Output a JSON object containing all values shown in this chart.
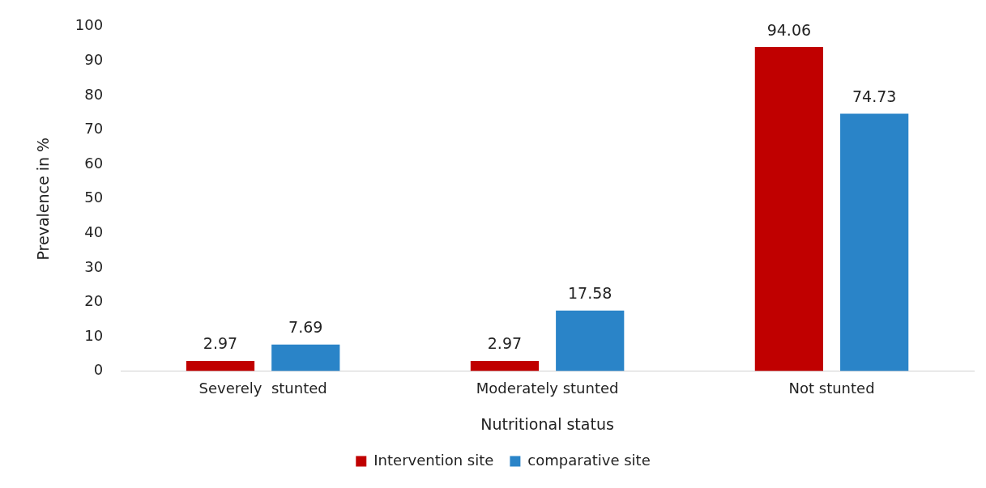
{
  "chart_data": {
    "type": "bar",
    "xlabel": "Nutritional status",
    "ylabel": "Prevalence in %",
    "categories": [
      "Severely  stunted",
      "Moderately stunted",
      "Not stunted"
    ],
    "series": [
      {
        "name": "Intervention site",
        "color": "#c00000",
        "values": [
          2.97,
          2.97,
          94.06
        ]
      },
      {
        "name": "comparative site",
        "color": "#2a84c8",
        "values": [
          7.69,
          17.58,
          74.73
        ]
      }
    ],
    "ylim": [
      0,
      100
    ],
    "yticks": [
      0,
      10,
      20,
      30,
      40,
      50,
      60,
      70,
      80,
      90,
      100
    ],
    "grid": false,
    "legend": "bottom",
    "data_labels": true
  }
}
